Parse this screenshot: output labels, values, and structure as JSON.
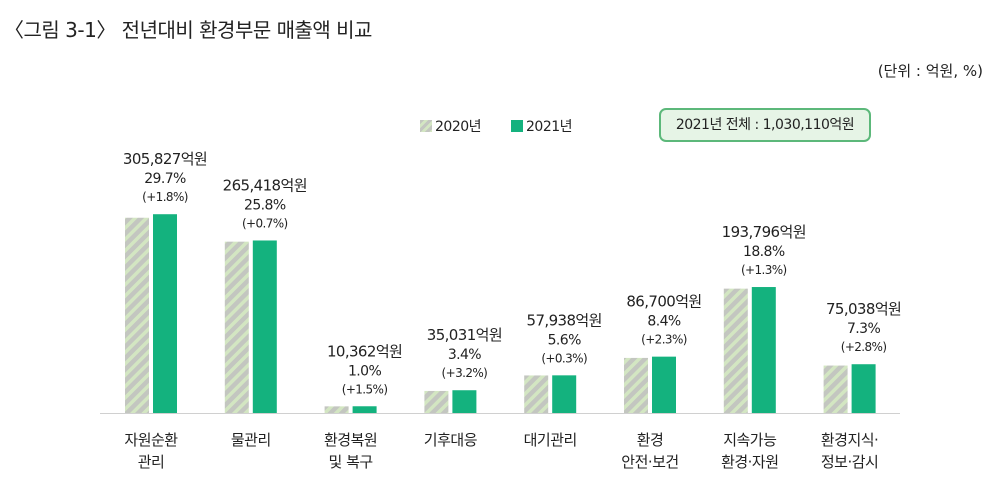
{
  "title": "〈그림 3-1〉 전년대비 환경부문 매출액 비교",
  "unit_note": "(단위 : 억원, %)",
  "total_box": "2021년 전체 : 1,030,110억원",
  "colors": {
    "y2020_base": "#c3c6c0",
    "y2020_stripe": "#d3e6c2",
    "y2021": "#14b27e",
    "box_border": "#5cb87a",
    "box_fill": "#e6f4e6"
  },
  "chart_data": {
    "type": "bar",
    "title": "전년대비 환경부문 매출액 비교",
    "ylim": [
      0,
      320000
    ],
    "grid": false,
    "legend_placement": "top",
    "categories": [
      [
        "자원순환",
        "관리"
      ],
      [
        "물관리"
      ],
      [
        "환경복원",
        "및 복구"
      ],
      [
        "기후대응"
      ],
      [
        "대기관리"
      ],
      [
        "환경",
        "안전·보건"
      ],
      [
        "지속가능",
        "환경·자원"
      ],
      [
        "환경지식·",
        "정보·감시"
      ]
    ],
    "series": [
      {
        "name": "2020년",
        "values": [
          300400,
          263600,
          10210,
          33940,
          57770,
          84750,
          191320,
          72990
        ]
      },
      {
        "name": "2021년",
        "values": [
          305827,
          265418,
          10362,
          35031,
          57938,
          86700,
          193796,
          75038
        ]
      }
    ],
    "labels": [
      {
        "amount": "305,827억원",
        "share": "29.7%",
        "change": "(+1.8%)"
      },
      {
        "amount": "265,418억원",
        "share": "25.8%",
        "change": "(+0.7%)"
      },
      {
        "amount": "10,362억원",
        "share": "1.0%",
        "change": "(+1.5%)"
      },
      {
        "amount": "35,031억원",
        "share": "3.4%",
        "change": "(+3.2%)"
      },
      {
        "amount": "57,938억원",
        "share": "5.6%",
        "change": "(+0.3%)"
      },
      {
        "amount": "86,700억원",
        "share": "8.4%",
        "change": "(+2.3%)"
      },
      {
        "amount": "193,796억원",
        "share": "18.8%",
        "change": "(+1.3%)"
      },
      {
        "amount": "75,038억원",
        "share": "7.3%",
        "change": "(+2.8%)"
      }
    ]
  }
}
